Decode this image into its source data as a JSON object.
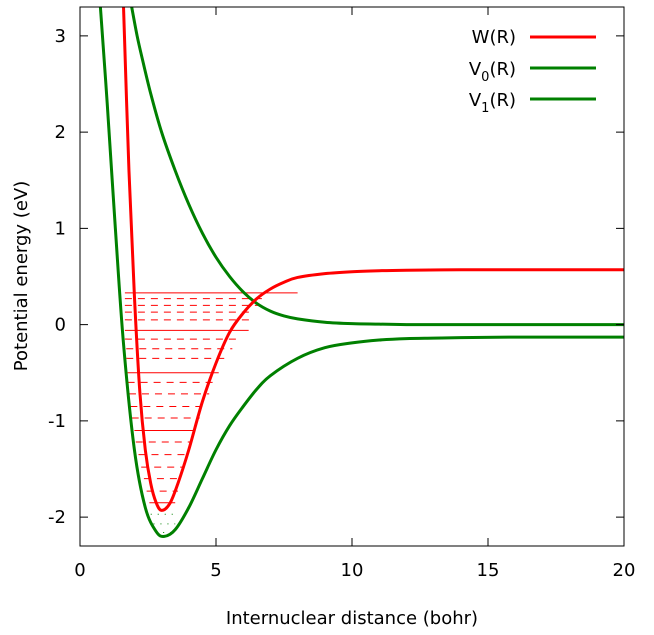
{
  "chart_data": {
    "type": "line",
    "xlabel": "Internuclear distance (bohr)",
    "ylabel": "Potential energy (eV)",
    "xlim": [
      0,
      20
    ],
    "ylim": [
      -2.3,
      3.3
    ],
    "x_ticks": [
      0,
      5,
      10,
      15,
      20
    ],
    "y_ticks": [
      -2,
      -1,
      0,
      1,
      2,
      3
    ],
    "x_tick_labels": [
      "0",
      "5",
      "10",
      "15",
      "20"
    ],
    "y_tick_labels": [
      "-2",
      "-1",
      "0",
      "1",
      "2",
      "3"
    ],
    "grid": false,
    "legend_position": "top-right",
    "series": [
      {
        "name": "W(R)",
        "color": "#ff0000",
        "x": [
          1.6,
          1.8,
          2.0,
          2.2,
          2.4,
          2.6,
          2.8,
          3.0,
          3.3,
          3.6,
          4.0,
          4.5,
          5.0,
          5.5,
          6.0,
          6.5,
          7.0,
          7.5,
          8.0,
          9.0,
          10.0,
          11.0,
          12.0,
          14.0,
          16.0,
          18.0,
          20.0
        ],
        "y": [
          3.3,
          1.6,
          0.3,
          -0.7,
          -1.3,
          -1.65,
          -1.85,
          -1.93,
          -1.86,
          -1.65,
          -1.3,
          -0.8,
          -0.4,
          -0.08,
          0.12,
          0.27,
          0.37,
          0.44,
          0.49,
          0.53,
          0.55,
          0.56,
          0.565,
          0.57,
          0.57,
          0.57,
          0.57
        ]
      },
      {
        "name": "V0(R)",
        "label_main": "V",
        "label_sub": "0",
        "label_tail": "(R)",
        "color": "#008000",
        "x": [
          1.9,
          2.1,
          2.3,
          2.6,
          3.0,
          3.5,
          4.0,
          4.5,
          5.0,
          5.5,
          6.0,
          6.5,
          7.0,
          7.5,
          8.0,
          9.0,
          10.0,
          11.0,
          12.0,
          13.0,
          14.0,
          16.0,
          18.0,
          20.0
        ],
        "y": [
          3.3,
          3.0,
          2.75,
          2.4,
          2.0,
          1.6,
          1.25,
          0.95,
          0.7,
          0.5,
          0.34,
          0.22,
          0.14,
          0.09,
          0.06,
          0.025,
          0.01,
          0.005,
          0.0,
          0.0,
          0.0,
          0.0,
          0.0,
          0.0
        ]
      },
      {
        "name": "V1(R)",
        "label_main": "V",
        "label_sub": "1",
        "label_tail": "(R)",
        "color": "#008000",
        "x": [
          0.75,
          1.0,
          1.3,
          1.6,
          2.0,
          2.4,
          2.8,
          3.1,
          3.5,
          4.0,
          4.5,
          5.0,
          5.5,
          6.0,
          6.5,
          7.0,
          8.0,
          9.0,
          10.0,
          11.0,
          12.0,
          13.0,
          14.0,
          16.0,
          18.0,
          20.0
        ],
        "y": [
          3.3,
          2.3,
          1.0,
          -0.2,
          -1.3,
          -1.9,
          -2.15,
          -2.2,
          -2.13,
          -1.9,
          -1.6,
          -1.3,
          -1.05,
          -0.85,
          -0.67,
          -0.53,
          -0.35,
          -0.24,
          -0.19,
          -0.16,
          -0.145,
          -0.14,
          -0.135,
          -0.13,
          -0.13,
          -0.13
        ]
      }
    ],
    "solid_levels": [
      {
        "y": 0.33,
        "x1": 1.65,
        "x2": 8.0
      },
      {
        "y": -0.06,
        "x1": 1.65,
        "x2": 6.2
      },
      {
        "y": -0.5,
        "x1": 1.75,
        "x2": 5.1
      },
      {
        "y": -1.1,
        "x1": 2.0,
        "x2": 4.2
      },
      {
        "y": -1.85,
        "x1": 2.55,
        "x2": 3.5
      }
    ],
    "dashed_levels": [
      {
        "y": 0.27,
        "x1": 1.65,
        "x2": 6.9
      },
      {
        "y": 0.2,
        "x1": 1.65,
        "x2": 6.6
      },
      {
        "y": 0.13,
        "x1": 1.65,
        "x2": 6.4
      },
      {
        "y": 0.05,
        "x1": 1.65,
        "x2": 6.3
      },
      {
        "y": -0.15,
        "x1": 1.65,
        "x2": 5.9
      },
      {
        "y": -0.25,
        "x1": 1.7,
        "x2": 5.6
      },
      {
        "y": -0.35,
        "x1": 1.7,
        "x2": 5.4
      },
      {
        "y": -0.6,
        "x1": 1.75,
        "x2": 4.9
      },
      {
        "y": -0.72,
        "x1": 1.8,
        "x2": 4.75
      },
      {
        "y": -0.85,
        "x1": 1.85,
        "x2": 4.6
      },
      {
        "y": -0.97,
        "x1": 1.9,
        "x2": 4.4
      },
      {
        "y": -1.22,
        "x1": 2.05,
        "x2": 4.1
      },
      {
        "y": -1.35,
        "x1": 2.15,
        "x2": 3.95
      },
      {
        "y": -1.48,
        "x1": 2.25,
        "x2": 3.8
      },
      {
        "y": -1.6,
        "x1": 2.35,
        "x2": 3.7
      },
      {
        "y": -1.73,
        "x1": 2.45,
        "x2": 3.6
      }
    ],
    "dotted_levels": [
      {
        "y": -1.97,
        "x1": 2.6,
        "x2": 3.6,
        "color": "#008000"
      },
      {
        "y": -2.07,
        "x1": 2.7,
        "x2": 3.5,
        "color": "#008000"
      },
      {
        "y": -2.16,
        "x1": 2.8,
        "x2": 3.4,
        "color": "#008000"
      }
    ]
  }
}
